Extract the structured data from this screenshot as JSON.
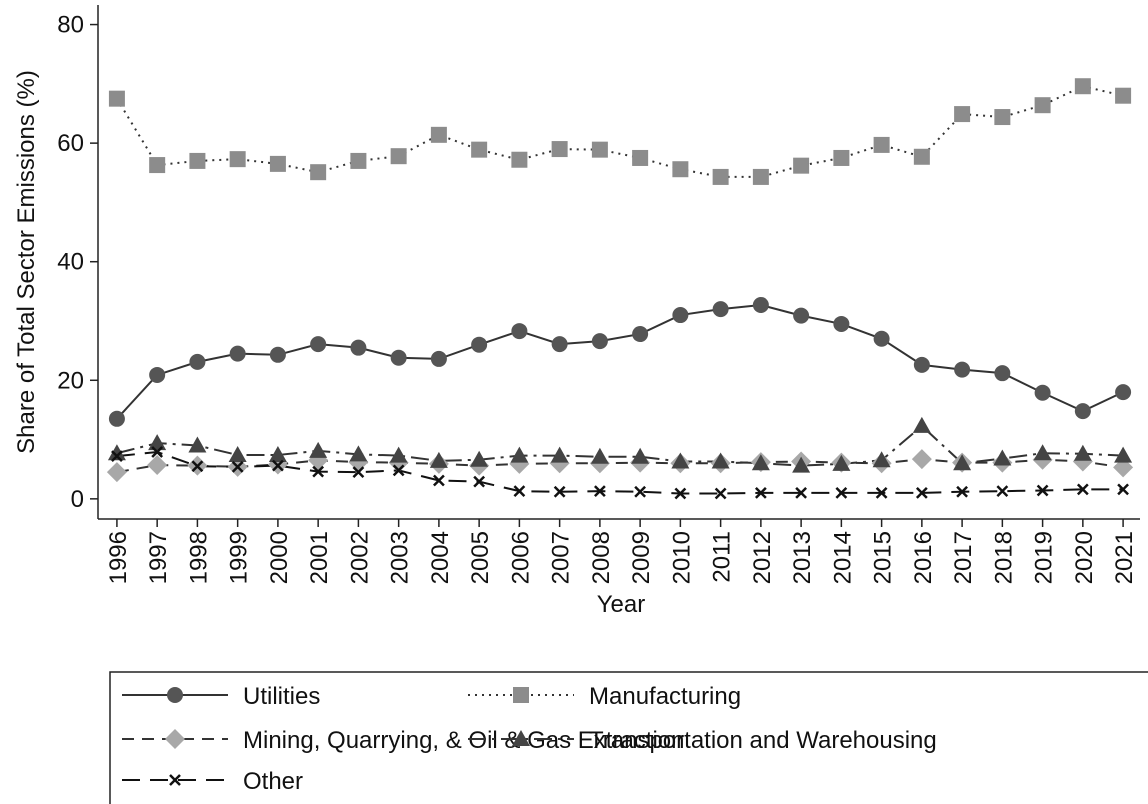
{
  "chart_data": {
    "type": "line",
    "x_label": "Year",
    "y_label": "Share of Total Sector Emissions (%)",
    "x": [
      1996,
      1997,
      1998,
      1999,
      2000,
      2001,
      2002,
      2003,
      2004,
      2005,
      2006,
      2007,
      2008,
      2009,
      2010,
      2011,
      2012,
      2013,
      2014,
      2015,
      2016,
      2017,
      2018,
      2019,
      2020,
      2021
    ],
    "xlim": [
      1995.53,
      2021.42
    ],
    "xticks": [
      1996,
      1997,
      1998,
      1999,
      2000,
      2001,
      2002,
      2003,
      2004,
      2005,
      2006,
      2007,
      2008,
      2009,
      2010,
      2011,
      2012,
      2013,
      2014,
      2015,
      2016,
      2017,
      2018,
      2019,
      2020,
      2021
    ],
    "ylim": [
      -3.4,
      83.3
    ],
    "yticks": [
      0,
      20,
      40,
      60,
      80
    ],
    "legend_position": "bottom",
    "series": [
      {
        "name": "Utilities",
        "color": "#555555",
        "line_color": "#333333",
        "marker": "circle",
        "dash": "solid",
        "values": [
          13.5,
          20.9,
          23.1,
          24.5,
          24.3,
          26.1,
          25.5,
          23.8,
          23.6,
          26.0,
          28.3,
          26.1,
          26.6,
          27.8,
          31.0,
          32.0,
          32.7,
          30.9,
          29.5,
          27.0,
          22.6,
          21.8,
          21.2,
          17.9,
          14.8,
          18.0
        ]
      },
      {
        "name": "Manufacturing",
        "color": "#8c8c8c",
        "line_color": "#333333",
        "marker": "square",
        "dash": "dotted",
        "values": [
          67.5,
          56.3,
          57.0,
          57.3,
          56.5,
          55.1,
          57.0,
          57.8,
          61.4,
          58.9,
          57.2,
          59.0,
          58.9,
          57.5,
          55.6,
          54.3,
          54.3,
          56.2,
          57.5,
          59.7,
          57.7,
          64.9,
          64.4,
          66.4,
          69.6,
          68.0
        ]
      },
      {
        "name": "Mining, Quarrying, & Oil & Gas Extraction",
        "color": "#a8a8a8",
        "line_color": "#333333",
        "marker": "diamond",
        "dash": "dashed",
        "values": [
          4.5,
          5.7,
          5.6,
          5.4,
          5.8,
          6.5,
          6.2,
          6.1,
          5.9,
          5.6,
          5.9,
          6.0,
          6.0,
          6.1,
          6.0,
          6.0,
          6.2,
          6.3,
          6.1,
          6.0,
          6.7,
          6.1,
          6.1,
          6.6,
          6.3,
          5.3
        ]
      },
      {
        "name": "Transportation and Warehousing",
        "color": "#444444",
        "line_color": "#333333",
        "marker": "triangle",
        "dash": "longdashdot",
        "values": [
          7.7,
          9.4,
          9.0,
          7.4,
          7.4,
          8.1,
          7.5,
          7.3,
          6.4,
          6.6,
          7.3,
          7.3,
          7.1,
          7.1,
          6.3,
          6.3,
          6.0,
          5.6,
          5.9,
          6.5,
          12.3,
          6.0,
          6.8,
          7.7,
          7.6,
          7.3
        ]
      },
      {
        "name": "Other",
        "color": "#111111",
        "line_color": "#111111",
        "marker": "x",
        "dash": "longdash",
        "values": [
          7.2,
          7.9,
          5.5,
          5.4,
          5.6,
          4.6,
          4.5,
          4.8,
          3.1,
          2.9,
          1.3,
          1.2,
          1.3,
          1.2,
          0.9,
          0.9,
          1.0,
          1.0,
          1.0,
          1.0,
          1.0,
          1.2,
          1.3,
          1.4,
          1.6,
          1.6
        ]
      }
    ]
  }
}
